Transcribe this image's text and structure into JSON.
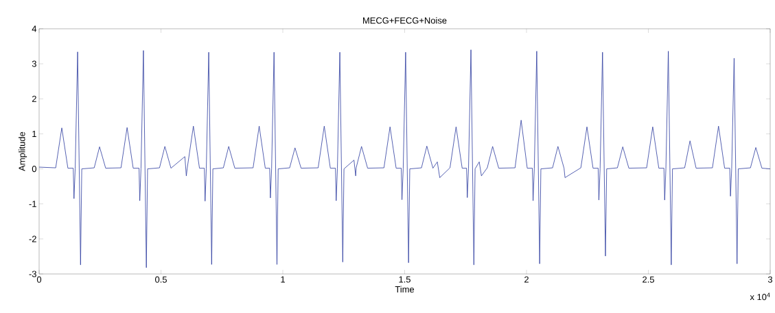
{
  "chart_data": {
    "type": "line",
    "title": "MECG+FECG+Noise",
    "xlabel": "Time",
    "ylabel": "Amplitude",
    "annotations": [
      "x 10$^{4}$"
    ],
    "color": "#2b3a9e",
    "xlim": [
      0,
      3
    ],
    "ylim": [
      -3,
      4
    ],
    "xticks": [
      0,
      0.5,
      1,
      1.5,
      2,
      2.5,
      3
    ],
    "yticks": [
      -3,
      -2,
      -1,
      0,
      1,
      2,
      3,
      4
    ],
    "x": [
      0,
      0.068,
      0.093,
      0.118,
      0.14,
      0.143,
      0.148,
      0.158,
      0.17,
      0.175,
      0.226,
      0.248,
      0.273,
      0.336,
      0.361,
      0.386,
      0.41,
      0.413,
      0.418,
      0.428,
      0.44,
      0.445,
      0.494,
      0.516,
      0.541,
      0.598,
      0.604,
      0.608,
      0.633,
      0.658,
      0.678,
      0.681,
      0.686,
      0.696,
      0.708,
      0.713,
      0.756,
      0.778,
      0.803,
      0.878,
      0.903,
      0.928,
      0.946,
      0.949,
      0.954,
      0.964,
      0.976,
      0.981,
      1.028,
      1.05,
      1.075,
      1.145,
      1.17,
      1.195,
      1.216,
      1.219,
      1.224,
      1.234,
      1.246,
      1.251,
      1.292,
      1.299,
      1.301,
      1.323,
      1.348,
      1.415,
      1.44,
      1.465,
      1.486,
      1.489,
      1.494,
      1.504,
      1.516,
      1.521,
      1.569,
      1.591,
      1.616,
      1.634,
      1.644,
      1.686,
      1.711,
      1.736,
      1.754,
      1.757,
      1.762,
      1.772,
      1.784,
      1.789,
      1.806,
      1.815,
      1.839,
      1.861,
      1.886,
      1.953,
      1.978,
      2.003,
      2.024,
      2.027,
      2.032,
      2.042,
      2.054,
      2.059,
      2.107,
      2.129,
      2.154,
      2.158,
      2.223,
      2.248,
      2.273,
      2.294,
      2.297,
      2.302,
      2.312,
      2.324,
      2.329,
      2.373,
      2.395,
      2.42,
      2.493,
      2.518,
      2.543,
      2.564,
      2.567,
      2.572,
      2.582,
      2.594,
      2.599,
      2.649,
      2.671,
      2.696,
      2.763,
      2.788,
      2.813,
      2.834,
      2.837,
      2.842,
      2.852,
      2.864,
      2.869,
      2.919,
      2.941,
      2.966,
      3
    ],
    "values": [
      0.05,
      0.03,
      1.17,
      0.02,
      0.02,
      -0.85,
      0.0,
      3.34,
      -2.74,
      0.0,
      0.03,
      0.63,
      0.02,
      0.03,
      1.18,
      0.02,
      0.02,
      -0.91,
      0.0,
      3.38,
      -2.82,
      0.0,
      0.03,
      0.64,
      0.02,
      0.35,
      -0.2,
      0.03,
      1.22,
      0.02,
      0.02,
      -0.92,
      0.0,
      3.33,
      -2.73,
      0.0,
      0.03,
      0.64,
      0.02,
      0.03,
      1.22,
      0.02,
      0.02,
      -0.83,
      0.0,
      3.33,
      -2.73,
      0.0,
      0.03,
      0.6,
      0.02,
      0.03,
      1.22,
      0.02,
      0.02,
      -0.91,
      0.0,
      3.33,
      -2.66,
      0.0,
      0.25,
      -0.2,
      0.03,
      0.64,
      0.02,
      0.03,
      1.2,
      0.02,
      0.02,
      -0.88,
      0.0,
      3.33,
      -2.68,
      0.0,
      0.03,
      0.65,
      0.02,
      0.2,
      -0.25,
      0.03,
      1.2,
      0.02,
      0.02,
      -0.82,
      0.0,
      3.4,
      -2.74,
      0.0,
      0.2,
      -0.2,
      0.03,
      0.64,
      0.02,
      0.03,
      1.39,
      0.02,
      0.02,
      -0.91,
      0.0,
      3.36,
      -2.71,
      0.0,
      0.03,
      0.64,
      0.02,
      -0.25,
      0.03,
      1.2,
      0.02,
      0.02,
      -0.89,
      0.0,
      3.33,
      -2.49,
      0.0,
      0.03,
      0.63,
      0.02,
      0.03,
      1.2,
      0.02,
      0.02,
      -0.89,
      0.0,
      3.36,
      -2.74,
      0.0,
      0.03,
      0.8,
      0.02,
      0.03,
      1.22,
      0.02,
      0.02,
      -0.78,
      0.0,
      3.16,
      -2.71,
      0.0,
      0.03,
      0.61,
      0.02,
      0.0
    ]
  }
}
